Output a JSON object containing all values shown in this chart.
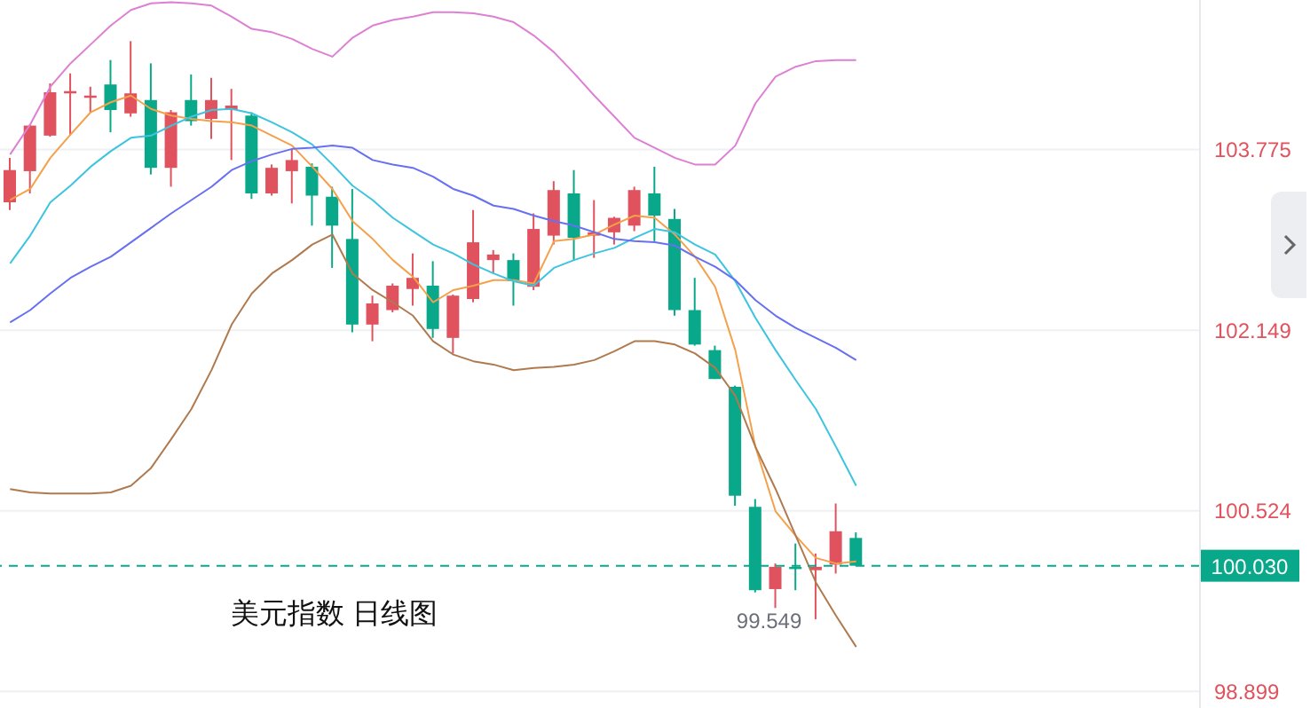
{
  "chart_data": {
    "type": "candlestick",
    "title": "美元指数 日线图",
    "categories": [
      null,
      null,
      null,
      null,
      null,
      null,
      null,
      null,
      null,
      null,
      null,
      null,
      null,
      null,
      null,
      null,
      null,
      null,
      null,
      null,
      null,
      null,
      null,
      null,
      null,
      null,
      null,
      null,
      null,
      null,
      null,
      null,
      null,
      null,
      null,
      null,
      null,
      null,
      null,
      null,
      null,
      null,
      null
    ],
    "ohlc": [
      [
        103.3,
        103.7,
        103.23,
        103.59
      ],
      [
        103.58,
        104.0,
        103.38,
        103.99
      ],
      [
        103.9,
        104.37,
        103.89,
        104.29
      ],
      [
        104.28,
        104.46,
        103.9,
        104.3
      ],
      [
        104.24,
        104.34,
        104.11,
        104.26
      ],
      [
        104.36,
        104.58,
        103.93,
        104.13
      ],
      [
        104.1,
        104.75,
        104.07,
        104.28
      ],
      [
        104.22,
        104.55,
        103.55,
        103.61
      ],
      [
        103.61,
        104.13,
        103.44,
        104.11
      ],
      [
        104.22,
        104.45,
        103.99,
        104.03
      ],
      [
        104.05,
        104.42,
        103.87,
        104.22
      ],
      [
        104.13,
        104.32,
        103.68,
        104.17
      ],
      [
        104.08,
        104.11,
        103.33,
        103.38
      ],
      [
        103.38,
        103.64,
        103.36,
        103.61
      ],
      [
        103.58,
        103.78,
        103.29,
        103.68
      ],
      [
        103.62,
        103.65,
        103.09,
        103.36
      ],
      [
        103.35,
        103.44,
        102.71,
        103.09
      ],
      [
        102.97,
        103.42,
        102.13,
        102.2
      ],
      [
        102.2,
        102.46,
        102.05,
        102.39
      ],
      [
        102.33,
        102.57,
        102.31,
        102.55
      ],
      [
        102.52,
        102.84,
        102.37,
        102.62
      ],
      [
        102.55,
        102.77,
        102.08,
        102.16
      ],
      [
        102.08,
        102.47,
        101.94,
        102.46
      ],
      [
        102.43,
        103.23,
        102.4,
        102.94
      ],
      [
        102.78,
        102.87,
        102.66,
        102.83
      ],
      [
        102.78,
        102.84,
        102.37,
        102.59
      ],
      [
        102.54,
        103.2,
        102.51,
        103.06
      ],
      [
        103.0,
        103.49,
        102.92,
        103.41
      ],
      [
        103.38,
        103.59,
        102.78,
        102.98
      ],
      [
        103.0,
        103.32,
        102.8,
        103.03
      ],
      [
        103.03,
        103.17,
        102.92,
        103.16
      ],
      [
        103.09,
        103.44,
        103.04,
        103.41
      ],
      [
        103.38,
        103.62,
        102.95,
        103.18
      ],
      [
        103.15,
        103.24,
        102.28,
        102.33
      ],
      [
        102.33,
        102.62,
        102.01,
        102.02
      ],
      [
        101.97,
        102.01,
        101.71,
        101.71
      ],
      [
        101.64,
        101.65,
        100.57,
        100.66
      ],
      [
        100.56,
        100.63,
        99.79,
        99.81
      ],
      [
        99.82,
        100.05,
        99.65,
        100.02
      ],
      [
        100.02,
        100.23,
        99.81,
        100.0
      ],
      [
        99.99,
        100.14,
        99.549,
        100.02
      ],
      [
        100.04,
        100.59,
        99.96,
        100.34
      ],
      [
        100.28,
        100.33,
        100.03,
        100.03
      ]
    ],
    "colors": [
      "#e0525d",
      "#e0525d",
      "#e0525d",
      "#e0525d",
      "#e0525d",
      "#0aa88a",
      "#e0525d",
      "#0aa88a",
      "#e0525d",
      "#0aa88a",
      "#e0525d",
      "#e0525d",
      "#0aa88a",
      "#e0525d",
      "#e0525d",
      "#0aa88a",
      "#0aa88a",
      "#0aa88a",
      "#e0525d",
      "#e0525d",
      "#e0525d",
      "#0aa88a",
      "#e0525d",
      "#e0525d",
      "#e0525d",
      "#0aa88a",
      "#e0525d",
      "#e0525d",
      "#0aa88a",
      "#e0525d",
      "#e0525d",
      "#e0525d",
      "#0aa88a",
      "#0aa88a",
      "#0aa88a",
      "#0aa88a",
      "#0aa88a",
      "#0aa88a",
      "#e0525d",
      "#0aa88a",
      "#e0525d",
      "#e0525d",
      "#0aa88a"
    ],
    "series": [
      {
        "type": "line",
        "color": "#f5a04a",
        "values": [
          103.32,
          103.42,
          103.7,
          103.91,
          104.11,
          104.2,
          104.26,
          104.14,
          104.08,
          104.05,
          104.03,
          104.02,
          103.99,
          103.9,
          103.81,
          103.62,
          103.42,
          103.13,
          102.97,
          102.78,
          102.63,
          102.4,
          102.51,
          102.55,
          102.6,
          102.6,
          102.57,
          102.95,
          102.97,
          103.01,
          103.1,
          103.18,
          103.16,
          103.01,
          102.81,
          102.54,
          101.97,
          101.1,
          100.52,
          100.3,
          100.1,
          100.05,
          100.07
        ]
      },
      {
        "type": "line",
        "color": "#3dc4df",
        "values": [
          102.75,
          103.0,
          103.3,
          103.45,
          103.62,
          103.76,
          103.88,
          103.9,
          103.99,
          104.07,
          104.13,
          104.14,
          104.1,
          104.02,
          103.93,
          103.82,
          103.64,
          103.45,
          103.32,
          103.16,
          103.04,
          102.92,
          102.84,
          102.74,
          102.66,
          102.59,
          102.55,
          102.71,
          102.78,
          102.84,
          102.89,
          102.98,
          103.06,
          103.03,
          102.92,
          102.83,
          102.59,
          102.26,
          101.97,
          101.7,
          101.44,
          101.1,
          100.75
        ]
      },
      {
        "type": "line",
        "color": "#6670f0",
        "values": [
          102.22,
          102.33,
          102.48,
          102.62,
          102.72,
          102.81,
          102.94,
          103.07,
          103.2,
          103.32,
          103.44,
          103.59,
          103.67,
          103.73,
          103.78,
          103.79,
          103.81,
          103.79,
          103.68,
          103.64,
          103.61,
          103.53,
          103.42,
          103.36,
          103.27,
          103.24,
          103.18,
          103.13,
          103.09,
          103.03,
          102.97,
          102.95,
          102.94,
          102.91,
          102.81,
          102.72,
          102.6,
          102.42,
          102.28,
          102.17,
          102.08,
          101.99,
          101.88
        ]
      },
      {
        "type": "line",
        "color": "#dd80d4",
        "values": [
          103.73,
          104.0,
          104.34,
          104.55,
          104.72,
          104.89,
          105.03,
          105.09,
          105.1,
          105.09,
          105.07,
          104.97,
          104.86,
          104.83,
          104.77,
          104.68,
          104.61,
          104.78,
          104.89,
          104.94,
          104.97,
          105.01,
          105.01,
          105.0,
          104.97,
          104.92,
          104.8,
          104.65,
          104.46,
          104.26,
          104.07,
          103.88,
          103.79,
          103.7,
          103.64,
          103.64,
          103.81,
          104.19,
          104.43,
          104.52,
          104.57,
          104.58,
          104.58
        ]
      },
      {
        "type": "line",
        "color": "#b07a4f",
        "values": [
          100.72,
          100.69,
          100.68,
          100.68,
          100.68,
          100.69,
          100.75,
          100.91,
          101.17,
          101.44,
          101.79,
          102.2,
          102.48,
          102.66,
          102.78,
          102.92,
          103.01,
          102.66,
          102.51,
          102.4,
          102.28,
          102.05,
          101.93,
          101.87,
          101.84,
          101.79,
          101.81,
          101.82,
          101.84,
          101.88,
          101.96,
          102.05,
          102.05,
          102.02,
          101.94,
          101.81,
          101.56,
          101.1,
          100.72,
          100.3,
          99.88,
          99.58,
          99.3
        ]
      }
    ],
    "ylim": [
      98.75,
      105.12
    ],
    "yticks": [
      98.899,
      100.524,
      102.149,
      103.775
    ],
    "grid": "y",
    "tick_labels": "y",
    "ref_lines": [
      {
        "axis": "y",
        "value": 100.03,
        "label": "100.030",
        "color": "#0aa88a",
        "line_style": "dashed"
      }
    ],
    "annotations": [
      "99.549"
    ]
  }
}
